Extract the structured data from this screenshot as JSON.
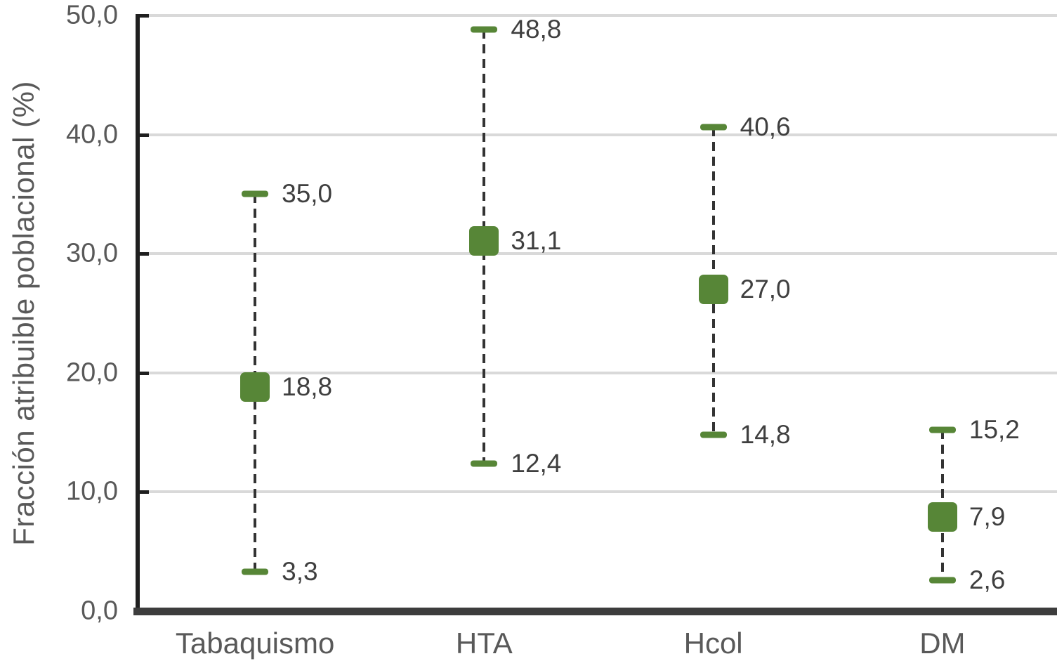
{
  "chart_data": {
    "type": "scatter",
    "subtype": "point-estimates-with-error-bars",
    "title": "",
    "xlabel": "",
    "ylabel": "Fracción atribuible poblacional (%)",
    "ylim": [
      0,
      50
    ],
    "ytick_interval": 10,
    "grid": "horizontal",
    "legend": "none",
    "decimal_separator": ",",
    "yticks": [
      {
        "value": 0,
        "label": "0,0"
      },
      {
        "value": 10,
        "label": "10,0"
      },
      {
        "value": 20,
        "label": "20,0"
      },
      {
        "value": 30,
        "label": "30,0"
      },
      {
        "value": 40,
        "label": "40,0"
      },
      {
        "value": 50,
        "label": "50,0"
      }
    ],
    "categories": [
      "Tabaquismo",
      "HTA",
      "Hcol",
      "DM"
    ],
    "series": [
      {
        "category": "Tabaquismo",
        "estimate": 18.8,
        "lower": 3.3,
        "upper": 35.0,
        "labels": {
          "estimate": "18,8",
          "lower": "3,3",
          "upper": "35,0"
        }
      },
      {
        "category": "HTA",
        "estimate": 31.1,
        "lower": 12.4,
        "upper": 48.8,
        "labels": {
          "estimate": "31,1",
          "lower": "12,4",
          "upper": "48,8"
        }
      },
      {
        "category": "Hcol",
        "estimate": 27.0,
        "lower": 14.8,
        "upper": 40.6,
        "labels": {
          "estimate": "27,0",
          "lower": "14,8",
          "upper": "40,6"
        }
      },
      {
        "category": "DM",
        "estimate": 7.9,
        "lower": 2.6,
        "upper": 15.2,
        "labels": {
          "estimate": "7,9",
          "lower": "2,6",
          "upper": "15,2"
        }
      }
    ],
    "colors": {
      "marker": "#578637",
      "error_line": "#333333",
      "gridline": "#d9d9d9",
      "axis_line": "#1f1f1f",
      "baseline": "#3d3d3d",
      "tick_text": "#595959",
      "data_label_text": "#3f3f3f"
    }
  }
}
